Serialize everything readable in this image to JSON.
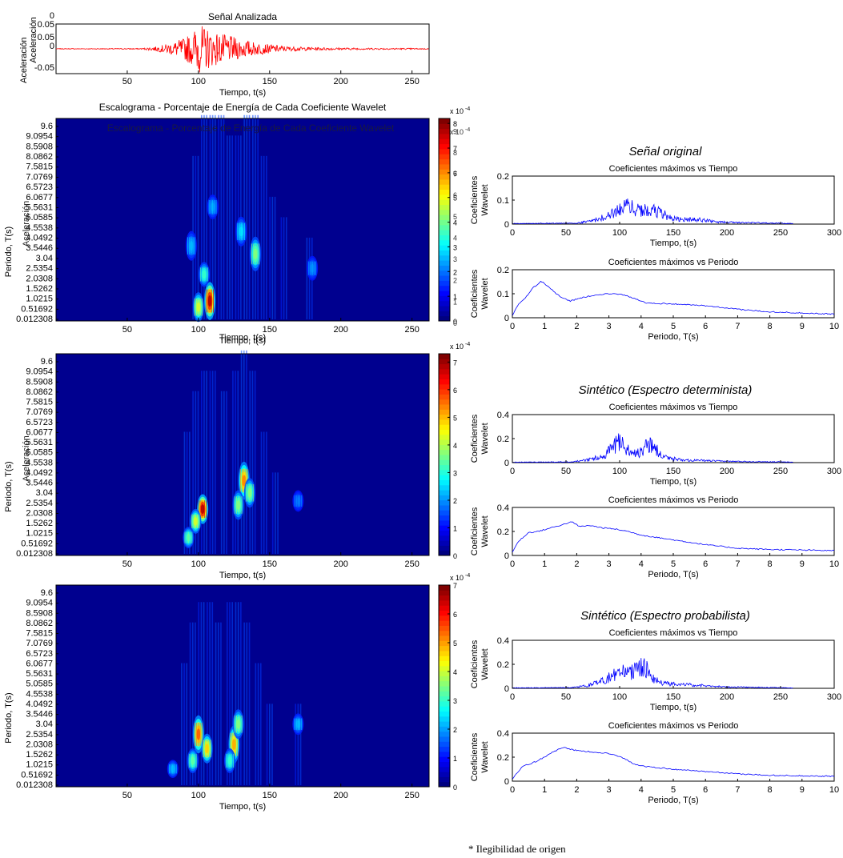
{
  "chart_data": [
    {
      "id": "signal",
      "type": "line",
      "title": "Señal Analizada",
      "xlabel": "Tiempo, t(s)",
      "ylabel": "Aceleración",
      "xlim": [
        0,
        262
      ],
      "ylim": [
        -0.05,
        0.05
      ],
      "xticks": [
        50,
        100,
        150,
        200,
        250
      ],
      "yticks": [
        "0.05",
        "0.05",
        "0",
        "-0.05"
      ],
      "overlay_labels": [
        "0",
        "Aceleración"
      ],
      "color": "#ff0000",
      "envelope": [
        [
          0,
          0.0005
        ],
        [
          60,
          0.001
        ],
        [
          70,
          0.004
        ],
        [
          80,
          0.01
        ],
        [
          90,
          0.02
        ],
        [
          95,
          0.03
        ],
        [
          100,
          0.045
        ],
        [
          105,
          0.04
        ],
        [
          110,
          0.032
        ],
        [
          120,
          0.025
        ],
        [
          130,
          0.018
        ],
        [
          140,
          0.012
        ],
        [
          150,
          0.008
        ],
        [
          165,
          0.004
        ],
        [
          180,
          0.003
        ],
        [
          200,
          0.002
        ],
        [
          230,
          0.0015
        ],
        [
          262,
          0.001
        ]
      ]
    },
    {
      "id": "scalogram-original",
      "type": "heatmap",
      "title": "Escalograma - Porcentaje de Energía de Cada Coeficiente Wavelet",
      "overlay_title": "Escalograma - Porcentaje de Energía de Cada Coeficiente Wavelet",
      "xlabel": "Tiempo, t(s)",
      "xlabel_overlay": "Tiempo, t(s)",
      "ylabel": "Periodo, T(s)",
      "ylabel_overlay": "Aceleración",
      "xlim": [
        0,
        262
      ],
      "xticks": [
        50,
        100,
        150,
        200,
        250
      ],
      "ytick_labels": [
        "9.6",
        "9.0954",
        "8.5908",
        "8.0862",
        "7.5815",
        "7.0769",
        "6.5723",
        "6.0677",
        "5.5631",
        "5.0585",
        "4.5538",
        "4.0492",
        "3.5446",
        "3.04",
        "2.5354",
        "2.0308",
        "1.5262",
        "1.0215",
        "0.51692",
        "0.012308"
      ],
      "colorbar_ticks": [
        "0",
        "1",
        "2",
        "3",
        "4",
        "5",
        "6",
        "7",
        "8"
      ],
      "colorbar_ticks_overlay": [
        "0",
        "1",
        "2",
        "3",
        "4",
        "5",
        "6",
        "7",
        "8",
        "9"
      ],
      "colorbar_exponent": "x 10",
      "colorbar_exponent_power": "-4",
      "blobs": [
        [
          108,
          0.9,
          0.2,
          1.0
        ],
        [
          100,
          0.6,
          0.15,
          0.55
        ],
        [
          104,
          2.2,
          0.12,
          0.35
        ],
        [
          140,
          3.2,
          0.18,
          0.45
        ],
        [
          130,
          4.3,
          0.15,
          0.25
        ],
        [
          110,
          5.5,
          0.12,
          0.18
        ],
        [
          180,
          2.5,
          0.12,
          0.15
        ],
        [
          95,
          3.6,
          0.15,
          0.2
        ]
      ],
      "ridges": [
        [
          98,
          8
        ],
        [
          104,
          10
        ],
        [
          110,
          10
        ],
        [
          116,
          10
        ],
        [
          122,
          9
        ],
        [
          128,
          9
        ],
        [
          134,
          10
        ],
        [
          140,
          10
        ],
        [
          146,
          8
        ],
        [
          152,
          6
        ],
        [
          160,
          5
        ],
        [
          178,
          4
        ]
      ],
      "color_max": 8.2
    },
    {
      "id": "scalogram-deterministic",
      "type": "heatmap",
      "xlabel": "Tiempo, t(s)",
      "ylabel": "Periodo, T(s)",
      "ylabel_overlay": "Aceleración",
      "xlim": [
        0,
        262
      ],
      "xticks": [
        50,
        100,
        150,
        200,
        250
      ],
      "ytick_labels": [
        "9.6",
        "9.0954",
        "8.5908",
        "8.0862",
        "7.5815",
        "7.0769",
        "6.5723",
        "6.0677",
        "5.5631",
        "5.0585",
        "4.5538",
        "4.0492",
        "3.5446",
        "3.04",
        "2.5354",
        "2.0308",
        "1.5262",
        "1.0215",
        "0.51692",
        "0.012308"
      ],
      "colorbar_ticks": [
        "0",
        "1",
        "2",
        "3",
        "4",
        "5",
        "6",
        "7"
      ],
      "colorbar_exponent": "x 10",
      "colorbar_exponent_power": "-4",
      "blobs": [
        [
          103,
          2.2,
          0.15,
          1.0
        ],
        [
          98,
          1.6,
          0.12,
          0.55
        ],
        [
          93,
          0.8,
          0.1,
          0.4
        ],
        [
          132,
          3.6,
          0.2,
          0.75
        ],
        [
          128,
          2.4,
          0.15,
          0.45
        ],
        [
          136,
          3.0,
          0.15,
          0.45
        ],
        [
          170,
          2.6,
          0.1,
          0.12
        ]
      ],
      "ridges": [
        [
          92,
          6
        ],
        [
          98,
          8
        ],
        [
          104,
          9
        ],
        [
          110,
          9
        ],
        [
          118,
          8
        ],
        [
          126,
          9
        ],
        [
          132,
          10
        ],
        [
          138,
          9
        ],
        [
          146,
          6
        ],
        [
          154,
          4
        ]
      ],
      "color_max": 7.3
    },
    {
      "id": "scalogram-probabilistic",
      "type": "heatmap",
      "xlabel": "Tiempo, t(s)",
      "ylabel": "Periodo, T(s)",
      "xlim": [
        0,
        262
      ],
      "xticks": [
        50,
        100,
        150,
        200,
        250
      ],
      "ytick_labels": [
        "9.6",
        "9.0954",
        "8.5908",
        "8.0862",
        "7.5815",
        "7.0769",
        "6.5723",
        "6.0677",
        "5.5631",
        "5.0585",
        "4.5538",
        "4.0492",
        "3.5446",
        "3.04",
        "2.5354",
        "2.0308",
        "1.5262",
        "1.0215",
        "0.51692",
        "0.012308"
      ],
      "colorbar_ticks": [
        "0",
        "1",
        "2",
        "3",
        "4",
        "5",
        "6",
        "7"
      ],
      "colorbar_exponent": "x 10",
      "colorbar_exponent_power": "-4",
      "blobs": [
        [
          100,
          2.5,
          0.2,
          0.8
        ],
        [
          106,
          1.8,
          0.15,
          0.65
        ],
        [
          96,
          1.2,
          0.12,
          0.4
        ],
        [
          125,
          2.0,
          0.2,
          0.7
        ],
        [
          128,
          3.0,
          0.15,
          0.45
        ],
        [
          122,
          1.2,
          0.12,
          0.35
        ],
        [
          170,
          3.0,
          0.1,
          0.2
        ],
        [
          82,
          0.8,
          0.08,
          0.2
        ]
      ],
      "ridges": [
        [
          90,
          6
        ],
        [
          96,
          8
        ],
        [
          102,
          9
        ],
        [
          108,
          9
        ],
        [
          114,
          8
        ],
        [
          122,
          9
        ],
        [
          128,
          9
        ],
        [
          134,
          8
        ],
        [
          142,
          6
        ],
        [
          150,
          4
        ],
        [
          170,
          4
        ]
      ],
      "color_max": 7.0
    },
    {
      "id": "orig-time",
      "type": "line",
      "panel_title": "Señal original",
      "title": "Coeficientes máximos vs Tiempo",
      "xlabel": "Tiempo, t(s)",
      "ylabel": [
        "Coeficientes",
        "Wavelet"
      ],
      "xlim": [
        0,
        300
      ],
      "ylim": [
        0,
        0.2
      ],
      "xticks": [
        0,
        50,
        100,
        150,
        200,
        250,
        300
      ],
      "yticks": [
        0,
        0.1,
        0.2
      ],
      "color": "#0000ff",
      "envelope": [
        [
          0,
          0.003
        ],
        [
          60,
          0.005
        ],
        [
          75,
          0.02
        ],
        [
          90,
          0.05
        ],
        [
          100,
          0.08
        ],
        [
          105,
          0.12
        ],
        [
          110,
          0.1
        ],
        [
          120,
          0.08
        ],
        [
          130,
          0.08
        ],
        [
          140,
          0.06
        ],
        [
          150,
          0.03
        ],
        [
          175,
          0.025
        ],
        [
          190,
          0.012
        ],
        [
          220,
          0.008
        ],
        [
          260,
          0.004
        ]
      ],
      "end_x": 262
    },
    {
      "id": "orig-period",
      "type": "line",
      "title": "Coeficientes máximos vs Periodo",
      "xlabel": "Periodo, T(s)",
      "ylabel": [
        "Coeficientes",
        "Wavelet"
      ],
      "xlim": [
        0,
        10
      ],
      "ylim": [
        0,
        0.2
      ],
      "xticks": [
        0,
        1,
        2,
        3,
        4,
        5,
        6,
        7,
        8,
        9,
        10
      ],
      "yticks": [
        0,
        0.1,
        0.2
      ],
      "color": "#0000ff",
      "points": [
        [
          0,
          0.01
        ],
        [
          0.2,
          0.06
        ],
        [
          0.4,
          0.08
        ],
        [
          0.6,
          0.12
        ],
        [
          0.9,
          0.152
        ],
        [
          1.2,
          0.12
        ],
        [
          1.5,
          0.085
        ],
        [
          1.8,
          0.07
        ],
        [
          2.2,
          0.085
        ],
        [
          2.6,
          0.095
        ],
        [
          3.0,
          0.1
        ],
        [
          3.4,
          0.098
        ],
        [
          3.8,
          0.08
        ],
        [
          4.2,
          0.06
        ],
        [
          5.0,
          0.058
        ],
        [
          6.0,
          0.05
        ],
        [
          7.0,
          0.035
        ],
        [
          8.0,
          0.025
        ],
        [
          9.0,
          0.02
        ],
        [
          10.0,
          0.015
        ]
      ]
    },
    {
      "id": "det-time",
      "type": "line",
      "panel_title": "Sintético (Espectro determinista)",
      "title": "Coeficientes máximos vs Tiempo",
      "xlabel": "Tiempo, t(s)",
      "ylabel": [
        "Coeficientes",
        "Wavelet"
      ],
      "xlim": [
        0,
        300
      ],
      "ylim": [
        0,
        0.4
      ],
      "xticks": [
        0,
        50,
        100,
        150,
        200,
        250,
        300
      ],
      "yticks": [
        0,
        0.2,
        0.4
      ],
      "color": "#0000ff",
      "envelope": [
        [
          0,
          0.005
        ],
        [
          55,
          0.008
        ],
        [
          70,
          0.03
        ],
        [
          85,
          0.08
        ],
        [
          95,
          0.18
        ],
        [
          100,
          0.25
        ],
        [
          105,
          0.18
        ],
        [
          112,
          0.1
        ],
        [
          120,
          0.12
        ],
        [
          126,
          0.24
        ],
        [
          132,
          0.18
        ],
        [
          140,
          0.06
        ],
        [
          160,
          0.03
        ],
        [
          200,
          0.015
        ],
        [
          250,
          0.008
        ],
        [
          262,
          0.005
        ]
      ],
      "end_x": 262
    },
    {
      "id": "det-period",
      "type": "line",
      "title": "Coeficientes máximos vs Periodo",
      "xlabel": "Periodo, T(s)",
      "ylabel": [
        "Coeficientes",
        "Wavelet"
      ],
      "xlim": [
        0,
        10
      ],
      "ylim": [
        0,
        0.4
      ],
      "xticks": [
        0,
        1,
        2,
        3,
        4,
        5,
        6,
        7,
        8,
        9,
        10
      ],
      "yticks": [
        0,
        0.2,
        0.4
      ],
      "color": "#0000ff",
      "points": [
        [
          0,
          0.03
        ],
        [
          0.2,
          0.12
        ],
        [
          0.5,
          0.19
        ],
        [
          0.8,
          0.2
        ],
        [
          1.2,
          0.23
        ],
        [
          1.6,
          0.26
        ],
        [
          1.85,
          0.28
        ],
        [
          2.1,
          0.24
        ],
        [
          2.4,
          0.25
        ],
        [
          2.8,
          0.23
        ],
        [
          3.2,
          0.22
        ],
        [
          3.6,
          0.2
        ],
        [
          4.0,
          0.17
        ],
        [
          4.5,
          0.15
        ],
        [
          5.0,
          0.13
        ],
        [
          5.5,
          0.11
        ],
        [
          6.0,
          0.09
        ],
        [
          6.5,
          0.075
        ],
        [
          7.0,
          0.06
        ],
        [
          8.0,
          0.05
        ],
        [
          9.0,
          0.045
        ],
        [
          10.0,
          0.04
        ]
      ]
    },
    {
      "id": "prob-time",
      "type": "line",
      "panel_title": "Sintético (Espectro probabilista)",
      "title": "Coeficientes máximos vs Tiempo",
      "xlabel": "Tiempo, t(s)",
      "ylabel": [
        "Coeficientes",
        "Wavelet"
      ],
      "xlim": [
        0,
        300
      ],
      "ylim": [
        0,
        0.4
      ],
      "xticks": [
        0,
        50,
        100,
        150,
        200,
        250,
        300
      ],
      "yticks": [
        0,
        0.2,
        0.4
      ],
      "color": "#0000ff",
      "envelope": [
        [
          0,
          0.005
        ],
        [
          55,
          0.008
        ],
        [
          70,
          0.03
        ],
        [
          85,
          0.09
        ],
        [
          95,
          0.15
        ],
        [
          100,
          0.2
        ],
        [
          110,
          0.18
        ],
        [
          118,
          0.22
        ],
        [
          124,
          0.26
        ],
        [
          130,
          0.12
        ],
        [
          140,
          0.06
        ],
        [
          165,
          0.04
        ],
        [
          200,
          0.015
        ],
        [
          250,
          0.008
        ],
        [
          262,
          0.005
        ]
      ],
      "end_x": 262
    },
    {
      "id": "prob-period",
      "type": "line",
      "title": "Coeficientes máximos vs Periodo",
      "xlabel": "Periodo, T(s)",
      "ylabel": [
        "Coeficientes",
        "Wavelet"
      ],
      "xlim": [
        0,
        10
      ],
      "ylim": [
        0,
        0.4
      ],
      "xticks": [
        0,
        1,
        2,
        3,
        4,
        5,
        6,
        7,
        8,
        9,
        10
      ],
      "yticks": [
        0,
        0.2,
        0.4
      ],
      "color": "#0000ff",
      "points": [
        [
          0,
          0.02
        ],
        [
          0.3,
          0.12
        ],
        [
          0.7,
          0.16
        ],
        [
          1.0,
          0.2
        ],
        [
          1.3,
          0.25
        ],
        [
          1.6,
          0.28
        ],
        [
          1.9,
          0.26
        ],
        [
          2.2,
          0.25
        ],
        [
          2.6,
          0.24
        ],
        [
          3.0,
          0.23
        ],
        [
          3.4,
          0.2
        ],
        [
          3.8,
          0.14
        ],
        [
          4.2,
          0.12
        ],
        [
          4.6,
          0.11
        ],
        [
          5.0,
          0.1
        ],
        [
          6.0,
          0.08
        ],
        [
          7.0,
          0.06
        ],
        [
          8.0,
          0.05
        ],
        [
          9.0,
          0.045
        ],
        [
          10.0,
          0.04
        ]
      ]
    }
  ],
  "footnote": "* Ilegibilidad de origen"
}
